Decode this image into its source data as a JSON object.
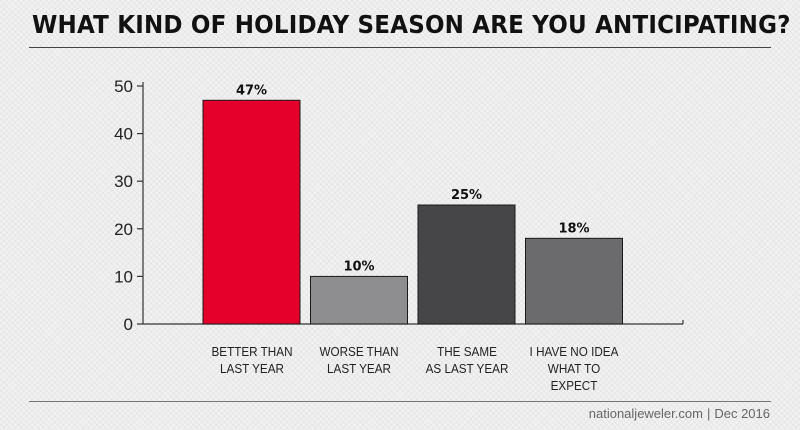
{
  "title": "WHAT KIND OF HOLIDAY SEASON ARE YOU ANTICIPATING?",
  "footer": {
    "source": "nationaljeweler.com",
    "date": "Dec 2016"
  },
  "chart_data": {
    "type": "bar",
    "title": "WHAT KIND OF HOLIDAY SEASON ARE YOU ANTICIPATING?",
    "xlabel": "",
    "ylabel": "",
    "ylim": [
      0,
      50
    ],
    "yticks": [
      "0",
      "10",
      "20",
      "30",
      "40",
      "50"
    ],
    "grid": false,
    "legend": "none",
    "categories": [
      [
        "BETTER THAN",
        "LAST YEAR"
      ],
      [
        "WORSE THAN",
        "LAST YEAR"
      ],
      [
        "THE SAME",
        "AS LAST YEAR"
      ],
      [
        "I HAVE NO IDEA",
        "WHAT TO EXPECT"
      ]
    ],
    "values": [
      47,
      10,
      25,
      18
    ],
    "data_labels": [
      "47%",
      "10%",
      "25%",
      "18%"
    ],
    "colors": [
      "#e4002b",
      "#8e8e90",
      "#464648",
      "#6b6b6d"
    ]
  }
}
